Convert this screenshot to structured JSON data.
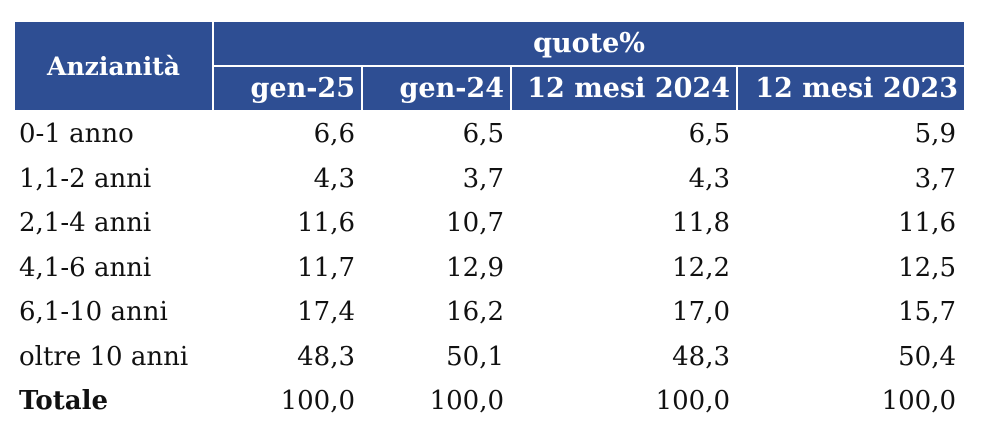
{
  "chart_data": {
    "type": "table",
    "row_header": "Anzianità",
    "column_group": "quote%",
    "columns": [
      "gen-25",
      "gen-24",
      "12 mesi 2024",
      "12 mesi 2023"
    ],
    "rows": [
      {
        "label": "0-1 anno",
        "values": [
          "6,6",
          "6,5",
          "6,5",
          "5,9"
        ]
      },
      {
        "label": "1,1-2 anni",
        "values": [
          "4,3",
          "3,7",
          "4,3",
          "3,7"
        ]
      },
      {
        "label": "2,1-4 anni",
        "values": [
          "11,6",
          "10,7",
          "11,8",
          "11,6"
        ]
      },
      {
        "label": "4,1-6 anni",
        "values": [
          "11,7",
          "12,9",
          "12,2",
          "12,5"
        ]
      },
      {
        "label": "6,1-10 anni",
        "values": [
          "17,4",
          "16,2",
          "17,0",
          "15,7"
        ]
      },
      {
        "label": "oltre 10 anni",
        "values": [
          "48,3",
          "50,1",
          "48,3",
          "50,4"
        ]
      },
      {
        "label": "Totale",
        "values": [
          "100,0",
          "100,0",
          "100,0",
          "100,0"
        ]
      }
    ],
    "colors": {
      "header_bg": "#2e4e93",
      "header_text": "#ffffff"
    }
  }
}
